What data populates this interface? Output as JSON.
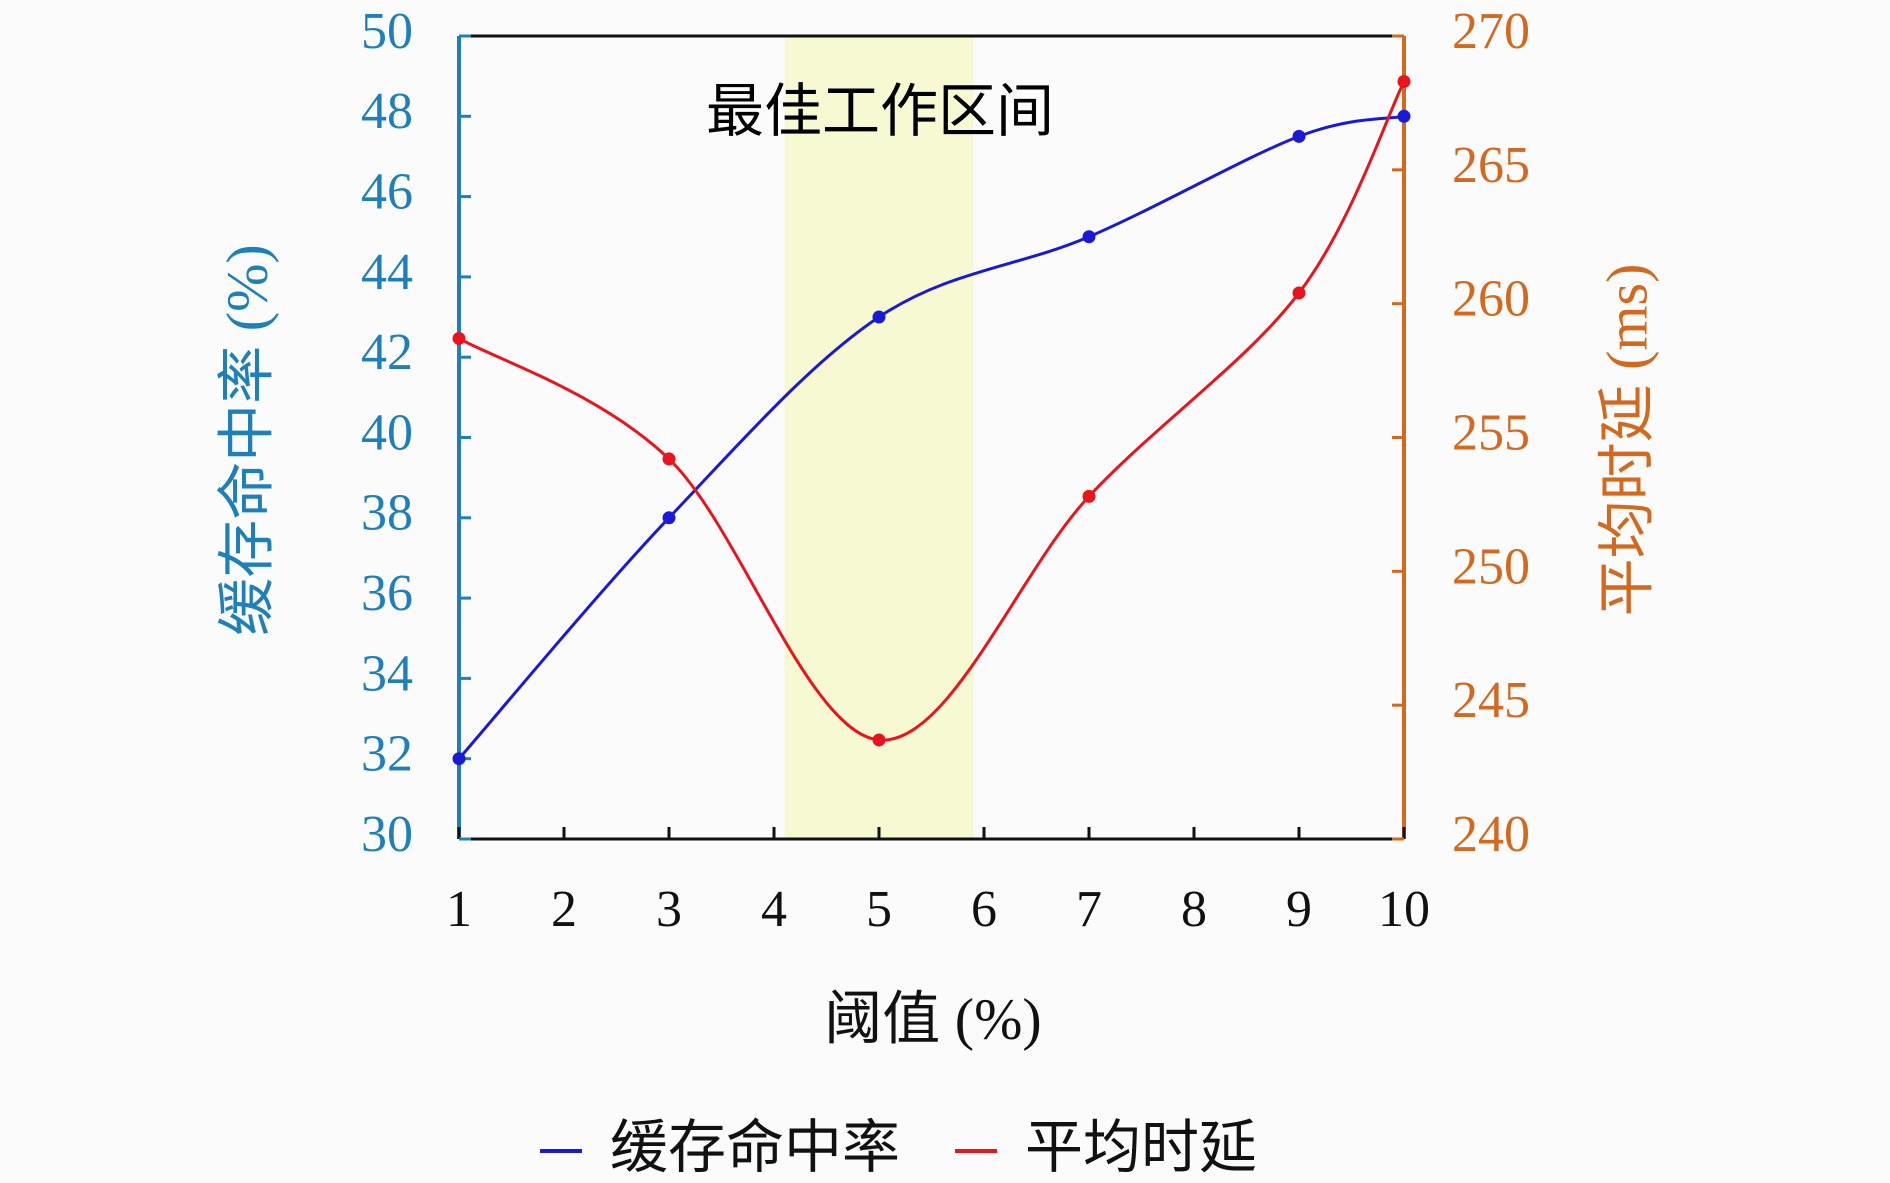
{
  "chart_data": {
    "type": "line",
    "x": [
      1,
      3,
      5,
      7,
      9,
      10
    ],
    "xlabel": "阈值 (%)",
    "ylabel": "缓存命中率 (%)",
    "y2label": "平均时延 (ms)",
    "annotation": "最佳工作区间",
    "highlight": {
      "xrange": [
        4.1,
        5.9
      ],
      "color": "#f7f9d2"
    },
    "series": [
      {
        "name": "缓存命中率",
        "color": "#1a1ad6",
        "values": [
          32,
          38,
          43,
          45,
          47.5,
          48
        ]
      },
      {
        "name": "平均时延",
        "color": "#e8141e",
        "axis": "y2",
        "values": [
          258.7,
          254.2,
          243.7,
          252.8,
          260.4,
          268.3
        ]
      }
    ],
    "xlim": [
      1,
      10
    ],
    "xticks": [
      1,
      2,
      3,
      4,
      5,
      6,
      7,
      8,
      9,
      10
    ],
    "ylim": [
      30,
      50
    ],
    "yticks": [
      30,
      32,
      34,
      36,
      38,
      40,
      42,
      44,
      46,
      48,
      50
    ],
    "ycolor": "#1f7fb8",
    "y2lim": [
      240,
      270
    ],
    "y2ticks": [
      240,
      245,
      250,
      255,
      260,
      265,
      270
    ],
    "y2color": "#d2691e",
    "legend": "bottom",
    "smooth": true
  }
}
